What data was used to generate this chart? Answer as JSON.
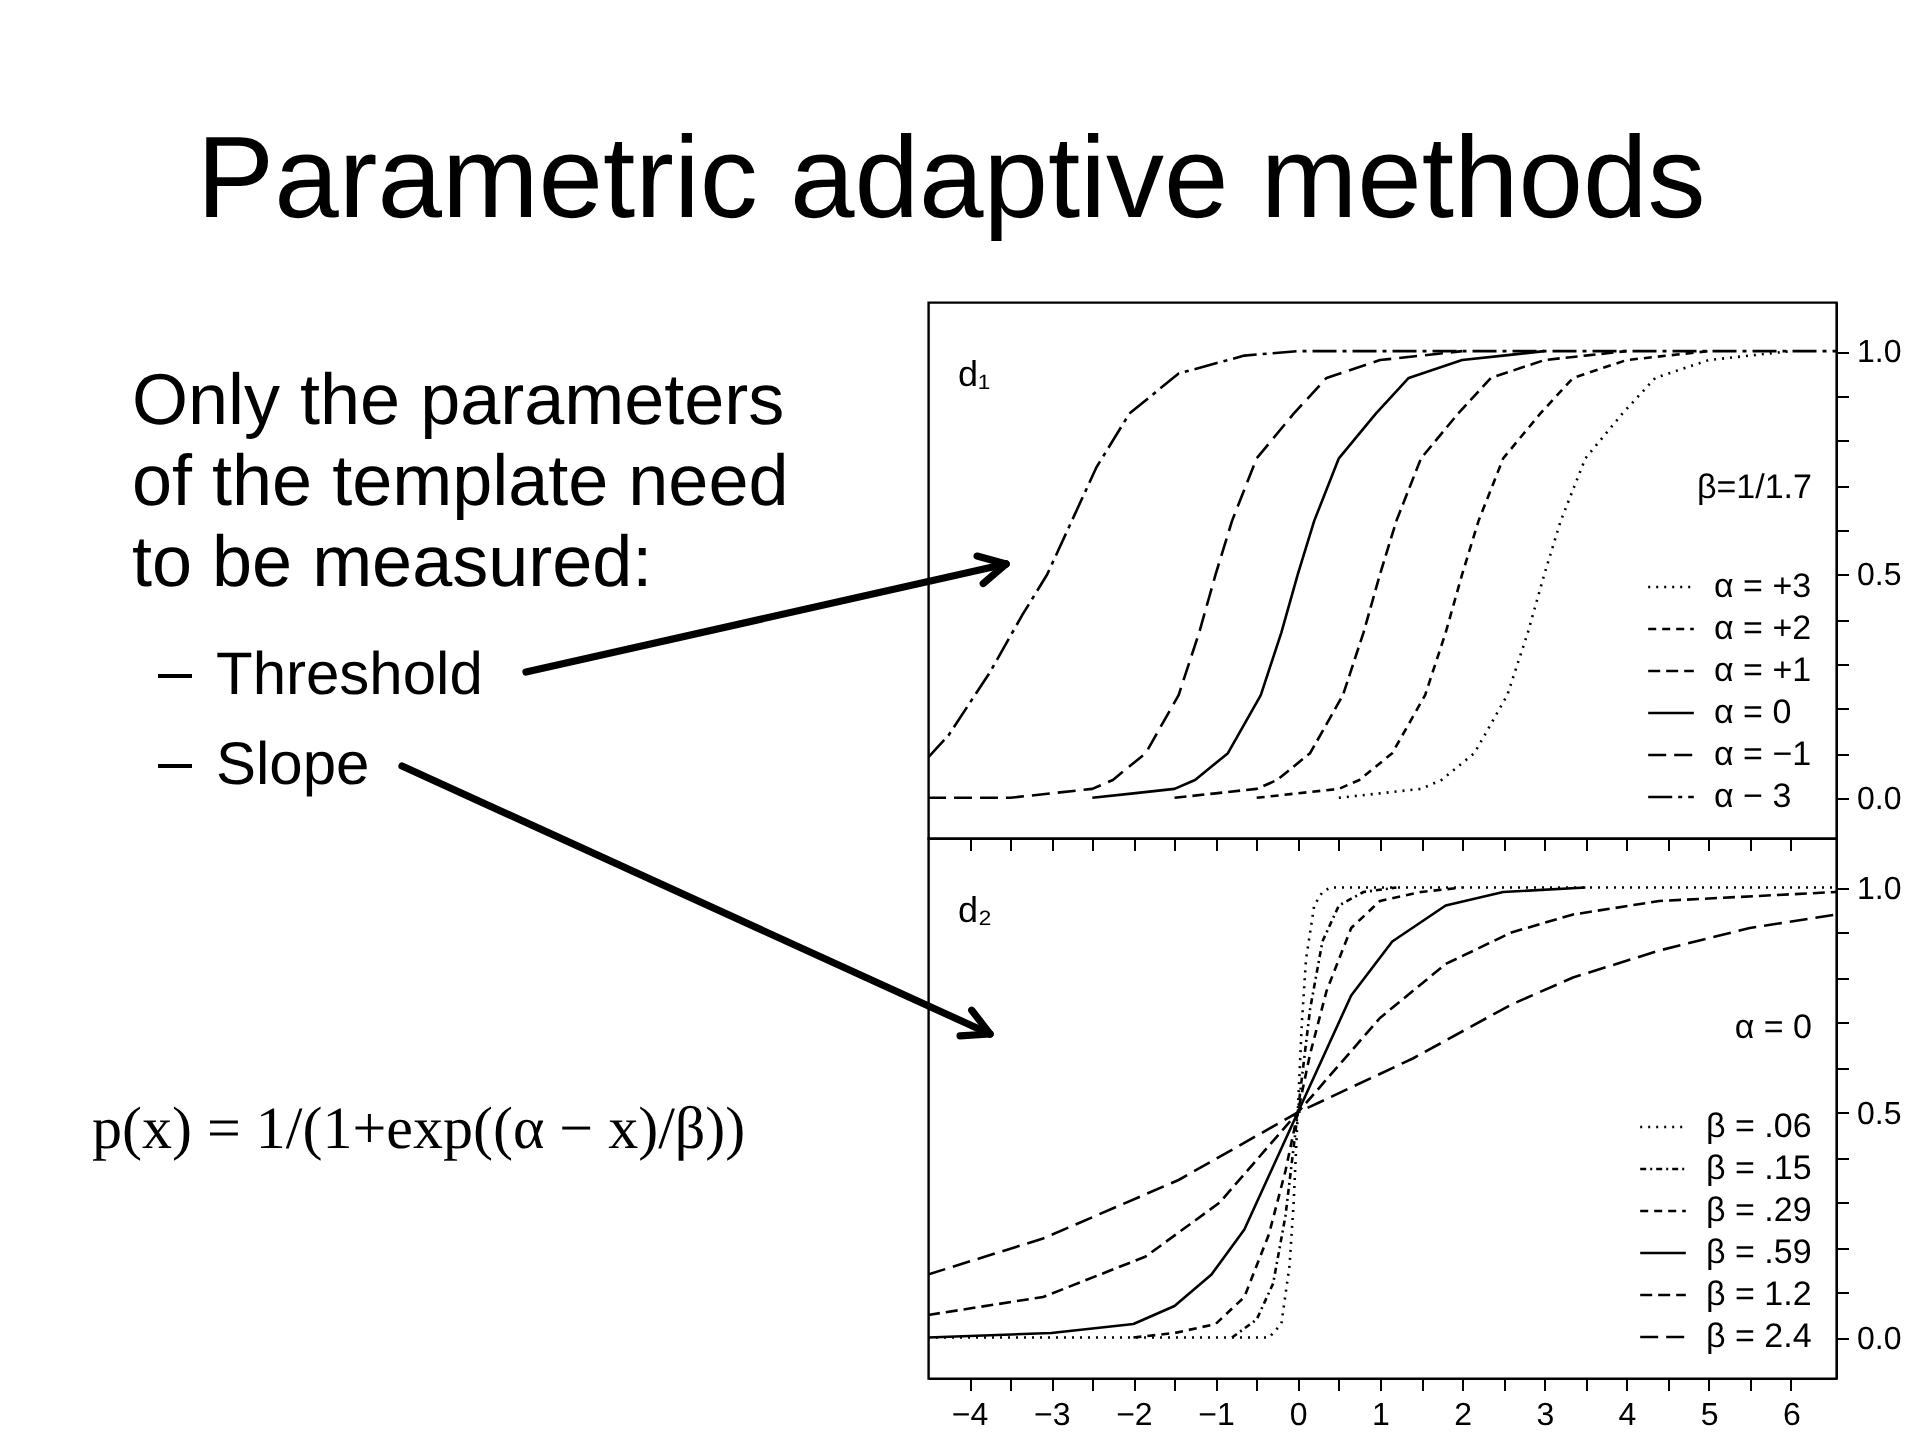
{
  "chart_data": [
    {
      "type": "other",
      "title": "Parametric adaptive methods",
      "annotations": [
        "Only the parameters of the template need to be measured:",
        "Threshold",
        "Slope",
        "p(x) = 1/(1+exp((α − x)/β))"
      ]
    },
    {
      "type": "line",
      "title": "d₁",
      "legend_title": "β=1/1.7",
      "legend": "bottom right",
      "tick_labels": "y",
      "xlim": [
        -4.5,
        6.55
      ],
      "ylim": [
        -0.09,
        1.11
      ],
      "xticks": [
        -4,
        {
          "value": -3.5,
          "label": null
        },
        -3,
        {
          "value": -2.5,
          "label": null
        },
        -2,
        {
          "value": -1.5,
          "label": null
        },
        -1,
        {
          "value": -0.5,
          "label": null
        },
        0,
        {
          "value": 0.5,
          "label": null
        },
        1,
        {
          "value": 1.5,
          "label": null
        },
        2,
        {
          "value": 2.5,
          "label": null
        },
        3,
        {
          "value": 3.5,
          "label": null
        },
        4,
        {
          "value": 4.5,
          "label": null
        },
        5,
        {
          "value": 5.5,
          "label": null
        },
        6
      ],
      "yticks": [
        {
          "value": 0,
          "label": "0.0"
        },
        {
          "value": 0.1,
          "label": null
        },
        {
          "value": 0.2,
          "label": null
        },
        {
          "value": 0.3,
          "label": null
        },
        {
          "value": 0.4,
          "label": null
        },
        0.5,
        {
          "value": 0.6,
          "label": null
        },
        {
          "value": 0.7,
          "label": null
        },
        {
          "value": 0.8,
          "label": null
        },
        {
          "value": 0.9,
          "label": null
        },
        {
          "value": 1,
          "label": "1.0"
        }
      ],
      "series": [
        {
          "name": "α = +3",
          "color": "#000000",
          "line_style": "dotted",
          "x": [
            0.5,
            1.0,
            1.5,
            1.75,
            2.15,
            2.55,
            2.8,
            3.0,
            3.2,
            3.5,
            3.95,
            4.35,
            5.0,
            5.5,
            6.0
          ],
          "values": [
            0,
            0.01,
            0.02,
            0.04,
            0.1,
            0.23,
            0.37,
            0.5,
            0.62,
            0.76,
            0.86,
            0.94,
            0.98,
            0.99,
            1.0
          ]
        },
        {
          "name": "α = +2",
          "color": "#000000",
          "line_style": "dashed",
          "x": [
            -0.5,
            0.0,
            0.5,
            0.75,
            1.15,
            1.55,
            1.8,
            2.0,
            2.2,
            2.5,
            2.95,
            3.35,
            4.0,
            4.5,
            5.0
          ],
          "values": [
            0,
            0.01,
            0.02,
            0.04,
            0.1,
            0.23,
            0.37,
            0.5,
            0.62,
            0.76,
            0.86,
            0.94,
            0.98,
            0.99,
            1.0
          ]
        },
        {
          "name": "α = +1",
          "color": "#000000",
          "line_style": "dashed",
          "x": [
            -1.5,
            -1.0,
            -0.5,
            -0.25,
            0.15,
            0.55,
            0.8,
            1.0,
            1.2,
            1.5,
            1.95,
            2.35,
            3.0,
            3.5,
            4.0
          ],
          "values": [
            0,
            0.01,
            0.02,
            0.04,
            0.1,
            0.23,
            0.37,
            0.5,
            0.62,
            0.76,
            0.86,
            0.94,
            0.98,
            0.99,
            1.0
          ]
        },
        {
          "name": "α = 0",
          "color": "#000000",
          "line_style": "solid",
          "x": [
            -2.5,
            -2.0,
            -1.5,
            -1.25,
            -0.85,
            -0.45,
            -0.2,
            0.0,
            0.2,
            0.5,
            0.95,
            1.35,
            2.0,
            2.5,
            3.0
          ],
          "values": [
            0,
            0.01,
            0.02,
            0.04,
            0.1,
            0.23,
            0.37,
            0.5,
            0.62,
            0.76,
            0.86,
            0.94,
            0.98,
            0.99,
            1.0
          ]
        },
        {
          "name": "α = −1",
          "color": "#000000",
          "line_style": "dashed",
          "x": [
            -4.5,
            -3.5,
            -3.0,
            -2.5,
            -2.25,
            -1.85,
            -1.45,
            -1.2,
            -1.0,
            -0.8,
            -0.5,
            -0.05,
            0.35,
            1.0,
            1.5,
            2.0
          ],
          "values": [
            0,
            0,
            0.01,
            0.02,
            0.04,
            0.1,
            0.23,
            0.37,
            0.5,
            0.62,
            0.76,
            0.86,
            0.94,
            0.98,
            0.99,
            1.0
          ]
        },
        {
          "name": "α − 3",
          "color": "#000000",
          "line_style": "dashed",
          "x": [
            -4.5,
            -4.25,
            -3.75,
            -3.35,
            -3.05,
            -2.75,
            -2.45,
            -2.05,
            -1.45,
            -0.65,
            0.0,
            6.55
          ],
          "values": [
            0.09,
            0.14,
            0.28,
            0.41,
            0.5,
            0.62,
            0.74,
            0.86,
            0.95,
            0.99,
            1.0,
            1.0
          ]
        }
      ]
    },
    {
      "type": "line",
      "title": "d₂",
      "legend_title": "α = 0",
      "legend": "bottom right",
      "xlim": [
        -4.5,
        6.55
      ],
      "ylim": [
        -0.09,
        1.11
      ],
      "xticks": [
        -4,
        {
          "value": -3.5,
          "label": null
        },
        -3,
        {
          "value": -2.5,
          "label": null
        },
        -2,
        {
          "value": -1.5,
          "label": null
        },
        -1,
        {
          "value": -0.5,
          "label": null
        },
        0,
        {
          "value": 0.5,
          "label": null
        },
        1,
        {
          "value": 1.5,
          "label": null
        },
        2,
        {
          "value": 2.5,
          "label": null
        },
        3,
        {
          "value": 3.5,
          "label": null
        },
        4,
        {
          "value": 4.5,
          "label": null
        },
        5,
        {
          "value": 5.5,
          "label": null
        },
        6
      ],
      "yticks": [
        {
          "value": 0,
          "label": "0.0"
        },
        {
          "value": 0.1,
          "label": null
        },
        {
          "value": 0.2,
          "label": null
        },
        {
          "value": 0.3,
          "label": null
        },
        {
          "value": 0.4,
          "label": null
        },
        0.5,
        {
          "value": 0.6,
          "label": null
        },
        {
          "value": 0.7,
          "label": null
        },
        {
          "value": 0.8,
          "label": null
        },
        {
          "value": 0.9,
          "label": null
        },
        {
          "value": 1,
          "label": "1.0"
        }
      ],
      "series": [
        {
          "name": "β = .06",
          "color": "#000000",
          "line_style": "dotted",
          "x": [
            -4.5,
            -0.35,
            -0.2,
            -0.1,
            -0.05,
            0.0,
            0.05,
            0.1,
            0.2,
            0.3,
            0.4,
            6.55
          ],
          "values": [
            0,
            0,
            0.03,
            0.16,
            0.3,
            0.5,
            0.7,
            0.84,
            0.96,
            0.99,
            1.0,
            1.0
          ]
        },
        {
          "name": "β = .15",
          "color": "#000000",
          "line_style": "dotted",
          "x": [
            -0.8,
            -0.5,
            -0.3,
            -0.15,
            0.0,
            0.15,
            0.3,
            0.5,
            0.8,
            1.2
          ],
          "values": [
            0,
            0.04,
            0.12,
            0.27,
            0.5,
            0.73,
            0.88,
            0.96,
            0.99,
            1.0
          ]
        },
        {
          "name": "β = .29",
          "color": "#000000",
          "line_style": "dashed",
          "x": [
            -2.0,
            -1.5,
            -1.0,
            -0.65,
            -0.35,
            -0.15,
            0.0,
            0.15,
            0.35,
            0.65,
            1.0,
            1.5,
            2.0
          ],
          "values": [
            0,
            0.01,
            0.03,
            0.09,
            0.23,
            0.37,
            0.5,
            0.63,
            0.77,
            0.91,
            0.97,
            0.99,
            1.0
          ]
        },
        {
          "name": "β = .59",
          "color": "#000000",
          "line_style": "solid",
          "x": [
            -4.5,
            -3.0,
            -2.0,
            -1.5,
            -1.05,
            -0.65,
            -0.3,
            0.0,
            0.35,
            0.65,
            1.15,
            1.8,
            2.5,
            3.5
          ],
          "values": [
            0,
            0.01,
            0.03,
            0.07,
            0.14,
            0.24,
            0.38,
            0.5,
            0.64,
            0.76,
            0.88,
            0.96,
            0.99,
            1.0
          ]
        },
        {
          "name": "β = 1.2",
          "color": "#000000",
          "line_style": "dashed",
          "x": [
            -4.5,
            -3.1,
            -1.85,
            -0.95,
            0.0,
            1.0,
            1.8,
            2.6,
            3.35,
            4.4,
            6.55
          ],
          "values": [
            0.05,
            0.09,
            0.18,
            0.3,
            0.5,
            0.71,
            0.83,
            0.9,
            0.94,
            0.97,
            0.99
          ]
        },
        {
          "name": "β = 2.4",
          "color": "#000000",
          "line_style": "dashed",
          "x": [
            -4.5,
            -3.1,
            -1.45,
            0.0,
            1.4,
            2.6,
            3.35,
            4.4,
            5.5,
            6.55
          ],
          "values": [
            0.14,
            0.22,
            0.35,
            0.5,
            0.62,
            0.74,
            0.8,
            0.86,
            0.91,
            0.94
          ]
        }
      ]
    }
  ]
}
